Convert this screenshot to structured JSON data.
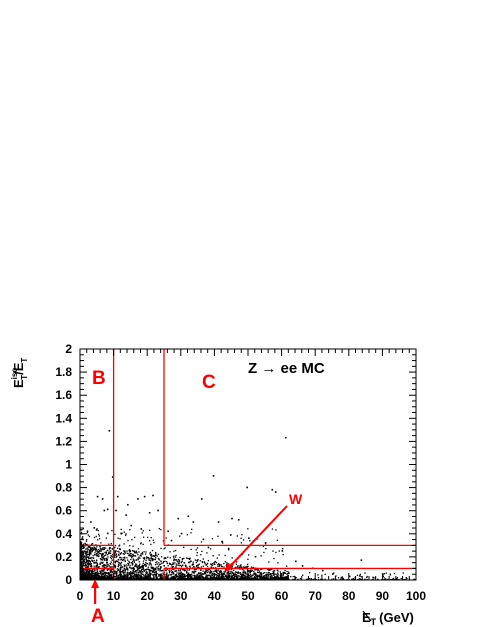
{
  "chart_data": {
    "type": "scatter",
    "title": "Z → ee MC",
    "xlabel": {
      "main": "E",
      "sub": "T",
      "unit": "(GeV)"
    },
    "ylabel": {
      "num": "E",
      "num_sup": "iso",
      "num_sub": "T",
      "den": "E",
      "den_sub": "T"
    },
    "xlim": [
      0,
      100
    ],
    "ylim": [
      0,
      2
    ],
    "x_ticks": [
      0,
      10,
      20,
      30,
      40,
      50,
      60,
      70,
      80,
      90,
      100
    ],
    "y_ticks": [
      0,
      0.2,
      0.4,
      0.6,
      0.8,
      1,
      1.2,
      1.4,
      1.6,
      1.8,
      2
    ],
    "x_tick_labels": [
      "0",
      "10",
      "20",
      "30",
      "40",
      "50",
      "60",
      "70",
      "80",
      "90",
      "100"
    ],
    "y_tick_labels": [
      "0",
      "0.2",
      "0.4",
      "0.6",
      "0.8",
      "1",
      "1.2",
      "1.4",
      "1.6",
      "1.8",
      "2"
    ],
    "grid": false,
    "regions": {
      "A": {
        "label": "A",
        "x": [
          0,
          10
        ],
        "y": [
          0,
          0.1
        ]
      },
      "B": {
        "label": "B",
        "x": [
          0,
          10
        ],
        "y": [
          0.3,
          2
        ]
      },
      "C": {
        "label": "C",
        "x": [
          25,
          100
        ],
        "y": [
          0.3,
          2
        ]
      },
      "W": {
        "label": "W",
        "x": [
          25,
          100
        ],
        "y": [
          0,
          0.1
        ]
      }
    },
    "lines": [
      {
        "type": "vertical",
        "x": 10,
        "y": [
          0,
          2
        ]
      },
      {
        "type": "vertical",
        "x": 25,
        "y": [
          0.3,
          2
        ]
      },
      {
        "type": "vertical",
        "x": 25,
        "y": [
          0,
          0.1
        ]
      },
      {
        "type": "horizontal",
        "y": 0.3,
        "x": [
          0,
          10
        ]
      },
      {
        "type": "horizontal",
        "y": 0.3,
        "x": [
          25,
          100
        ]
      },
      {
        "type": "horizontal",
        "y": 0.1,
        "x": [
          25,
          100
        ]
      },
      {
        "type": "horizontal",
        "y": 0.1,
        "x": [
          0,
          10
        ]
      }
    ],
    "outlier_points": [
      {
        "x": 8.5,
        "y": 1.29
      },
      {
        "x": 9.5,
        "y": 0.89
      },
      {
        "x": 61,
        "y": 1.23
      },
      {
        "x": 39.5,
        "y": 0.9
      },
      {
        "x": 49.5,
        "y": 0.8
      },
      {
        "x": 57,
        "y": 0.78
      },
      {
        "x": 58,
        "y": 0.76
      },
      {
        "x": 36,
        "y": 0.7
      },
      {
        "x": 21.5,
        "y": 0.73
      },
      {
        "x": 17,
        "y": 0.7
      },
      {
        "x": 19,
        "y": 0.72
      },
      {
        "x": 5,
        "y": 0.72
      },
      {
        "x": 6.5,
        "y": 0.7
      },
      {
        "x": 7,
        "y": 0.6
      },
      {
        "x": 8,
        "y": 0.61
      },
      {
        "x": 11,
        "y": 0.72
      },
      {
        "x": 10.5,
        "y": 0.6
      },
      {
        "x": 41,
        "y": 0.5
      },
      {
        "x": 45,
        "y": 0.53
      },
      {
        "x": 47,
        "y": 0.52
      },
      {
        "x": 20.5,
        "y": 0.58
      },
      {
        "x": 23,
        "y": 0.6
      },
      {
        "x": 29,
        "y": 0.53
      },
      {
        "x": 32,
        "y": 0.55
      },
      {
        "x": 33.5,
        "y": 0.5
      },
      {
        "x": 26,
        "y": 0.42
      },
      {
        "x": 30,
        "y": 0.4
      },
      {
        "x": 36.5,
        "y": 0.35
      },
      {
        "x": 42,
        "y": 0.33
      },
      {
        "x": 50,
        "y": 0.36
      },
      {
        "x": 55,
        "y": 0.32
      },
      {
        "x": 60,
        "y": 0.25
      },
      {
        "x": 83.5,
        "y": 0.17
      },
      {
        "x": 69,
        "y": 0.1
      },
      {
        "x": 72,
        "y": 0.08
      },
      {
        "x": 80,
        "y": 0.03
      },
      {
        "x": 87,
        "y": 0.02
      },
      {
        "x": 93,
        "y": 0.01
      },
      {
        "x": 13.5,
        "y": 0.56
      },
      {
        "x": 15,
        "y": 0.47
      },
      {
        "x": 18,
        "y": 0.44
      },
      {
        "x": 12,
        "y": 0.4
      },
      {
        "x": 3,
        "y": 0.5
      },
      {
        "x": 4,
        "y": 0.45
      },
      {
        "x": 2,
        "y": 0.42
      },
      {
        "x": 14,
        "y": 0.65
      },
      {
        "x": 27,
        "y": 0.34
      },
      {
        "x": 38,
        "y": 0.28
      },
      {
        "x": 44,
        "y": 0.27
      },
      {
        "x": 52,
        "y": 0.2
      },
      {
        "x": 64,
        "y": 0.16
      },
      {
        "x": 66,
        "y": 0.12
      },
      {
        "x": 75,
        "y": 0.05
      },
      {
        "x": 90,
        "y": 0.03
      }
    ],
    "annotations": [
      {
        "text": "A",
        "color": "#ff0000",
        "arrow_to": {
          "x": 4.5,
          "y": 0.0
        }
      },
      {
        "text": "B",
        "color": "#ff0000"
      },
      {
        "text": "C",
        "color": "#ff0000"
      },
      {
        "text": "W",
        "color": "#ff0000",
        "arrow_to": {
          "x": 43,
          "y": 0.07
        }
      }
    ],
    "colors": {
      "points": "#000000",
      "lines": "#ff0000",
      "labels": "#ff0000"
    }
  }
}
